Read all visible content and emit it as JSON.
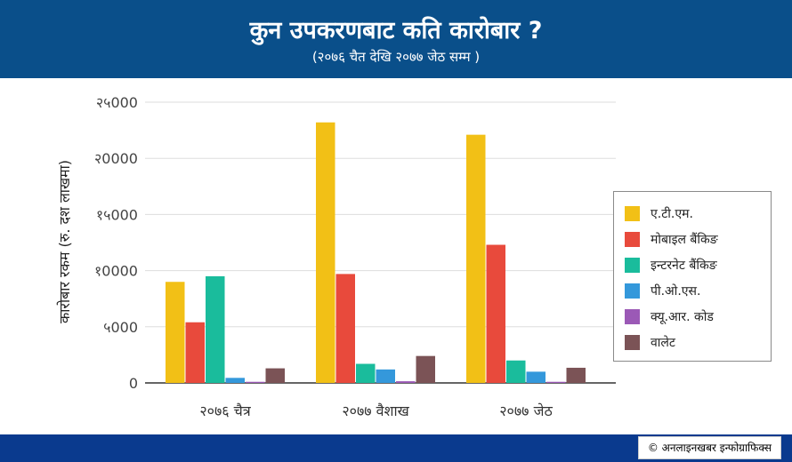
{
  "header": {
    "title": "कुन उपकरणबाट कति कारोबार ?",
    "subtitle": "(२०७६ चैत देखि २०७७ जेठ सम्म )"
  },
  "footer": {
    "credit": "© अनलाइनखबर इन्फोग्राफिक्स"
  },
  "colors": {
    "header_bg": "#0a4f8a",
    "footer_bg": "#0a3a8e",
    "grid": "#dddddd",
    "axis": "#333333"
  },
  "chart_data": {
    "type": "bar",
    "ylabel": "कारोबार रकम (रु. दश लाखमा)",
    "xlabel": "",
    "ylim": [
      0,
      25000
    ],
    "yticks": [
      0,
      5000,
      10000,
      15000,
      20000,
      25000
    ],
    "ytick_labels": [
      "0",
      "५000",
      "१0000",
      "१५000",
      "२0000",
      "२५000"
    ],
    "grid": true,
    "legend_position": "right",
    "categories": [
      "२०७६ चैत्र",
      "२०७७ वैशाख",
      "२०७७ जेठ"
    ],
    "series": [
      {
        "name": "ए.टी.एम.",
        "color": "#f2c016",
        "values": [
          9000,
          23200,
          22100
        ]
      },
      {
        "name": "मोबाइल बैंकिङ",
        "color": "#e84a3c",
        "values": [
          5400,
          9700,
          12300
        ]
      },
      {
        "name": "इन्टरनेट बैंकिङ",
        "color": "#1abc9c",
        "values": [
          9500,
          1700,
          2000
        ]
      },
      {
        "name": "पी.ओ.एस.",
        "color": "#3498db",
        "values": [
          450,
          1200,
          1000
        ]
      },
      {
        "name": "क्यू.आर. कोड",
        "color": "#9b59b6",
        "values": [
          100,
          150,
          100
        ]
      },
      {
        "name": "वालेट",
        "color": "#7b5356",
        "values": [
          1300,
          2400,
          1350
        ]
      }
    ]
  }
}
